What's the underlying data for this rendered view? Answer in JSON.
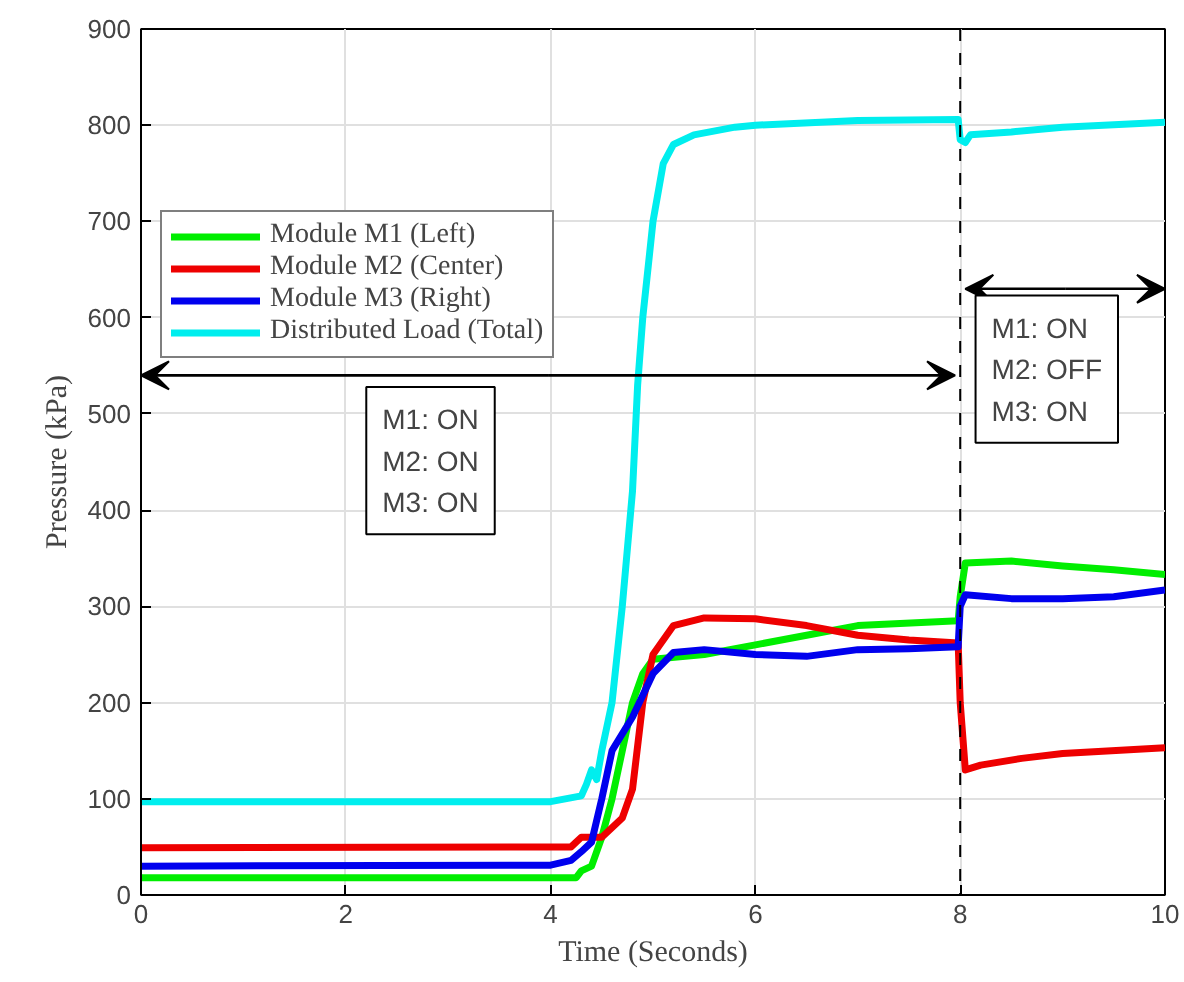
{
  "chart_data": {
    "type": "line",
    "xlabel": "Time (Seconds)",
    "ylabel": "Pressure (kPa)",
    "xlim": [
      0,
      10
    ],
    "ylim": [
      0,
      900
    ],
    "xticks": [
      0,
      2,
      4,
      6,
      8,
      10
    ],
    "yticks": [
      0,
      100,
      200,
      300,
      400,
      500,
      600,
      700,
      800,
      900
    ],
    "grid": true,
    "legend": "top left",
    "line_style": "solid",
    "marker": "none",
    "series": [
      {
        "name": "Module M1 (Left)",
        "color": "#00ee00",
        "x": [
          0,
          4.25,
          4.3,
          4.4,
          4.5,
          4.6,
          4.7,
          4.8,
          4.9,
          5.0,
          5.5,
          6,
          6.5,
          7,
          7.98,
          8.0,
          8.05,
          8.5,
          9,
          9.5,
          10
        ],
        "values": [
          18,
          18,
          25,
          30,
          60,
          100,
          150,
          200,
          230,
          245,
          250,
          260,
          270,
          280,
          285,
          310,
          345,
          347,
          342,
          338,
          333
        ]
      },
      {
        "name": "Module M2 (Center)",
        "color": "#ee0000",
        "x": [
          0,
          4.2,
          4.3,
          4.5,
          4.7,
          4.8,
          4.9,
          5.0,
          5.2,
          5.5,
          6,
          6.5,
          7,
          7.5,
          7.98,
          8.0,
          8.05,
          8.2,
          8.6,
          9,
          10
        ],
        "values": [
          49,
          50,
          60,
          60,
          80,
          110,
          200,
          250,
          280,
          288,
          287,
          280,
          270,
          265,
          262,
          200,
          130,
          135,
          142,
          147,
          153
        ]
      },
      {
        "name": "Module M3 (Right)",
        "color": "#0000ee",
        "x": [
          0,
          4,
          4.2,
          4.3,
          4.4,
          4.5,
          4.6,
          4.8,
          5.0,
          5.2,
          5.5,
          6,
          6.5,
          7,
          7.5,
          7.98,
          8.0,
          8.05,
          8.5,
          9,
          9.5,
          10
        ],
        "values": [
          30,
          31,
          36,
          45,
          55,
          100,
          150,
          185,
          230,
          252,
          255,
          250,
          248,
          255,
          256,
          258,
          300,
          312,
          308,
          308,
          310,
          317
        ]
      },
      {
        "name": "Distributed Load (Total)",
        "color": "#00eeee",
        "x": [
          0,
          4,
          4.3,
          4.35,
          4.4,
          4.45,
          4.5,
          4.6,
          4.7,
          4.8,
          4.85,
          4.9,
          5.0,
          5.1,
          5.2,
          5.4,
          5.8,
          6,
          7,
          7.98,
          8.0,
          8.05,
          8.1,
          8.5,
          9,
          10
        ],
        "values": [
          97,
          97,
          103,
          115,
          130,
          120,
          150,
          200,
          300,
          420,
          530,
          600,
          700,
          760,
          780,
          790,
          798,
          800,
          805,
          806,
          785,
          782,
          790,
          793,
          798,
          803
        ]
      }
    ],
    "ref_lines": [
      {
        "axis": "x",
        "value": 8,
        "color": "#000000",
        "line_style": "dashed"
      }
    ],
    "annotations": [
      "M1: ON\nM2: ON\nM3: ON",
      "M1: ON\nM2: OFF\nM3: ON"
    ]
  }
}
